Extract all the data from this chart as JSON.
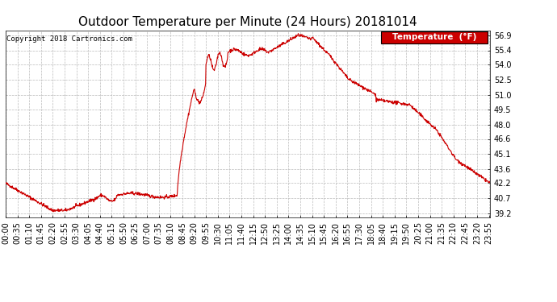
{
  "title": "Outdoor Temperature per Minute (24 Hours) 20181014",
  "copyright_text": "Copyright 2018 Cartronics.com",
  "legend_label": "Temperature  (°F)",
  "legend_bg": "#cc0000",
  "legend_text_color": "#ffffff",
  "line_color": "#cc0000",
  "line_width": 0.8,
  "background_color": "#ffffff",
  "grid_color": "#bbbbbb",
  "yticks": [
    39.2,
    40.7,
    42.2,
    43.6,
    45.1,
    46.6,
    48.0,
    49.5,
    51.0,
    52.5,
    54.0,
    55.4,
    56.9
  ],
  "ylim": [
    38.8,
    57.4
  ],
  "title_fontsize": 11,
  "tick_fontsize": 7,
  "x_tick_interval": 35,
  "total_minutes": 1440
}
